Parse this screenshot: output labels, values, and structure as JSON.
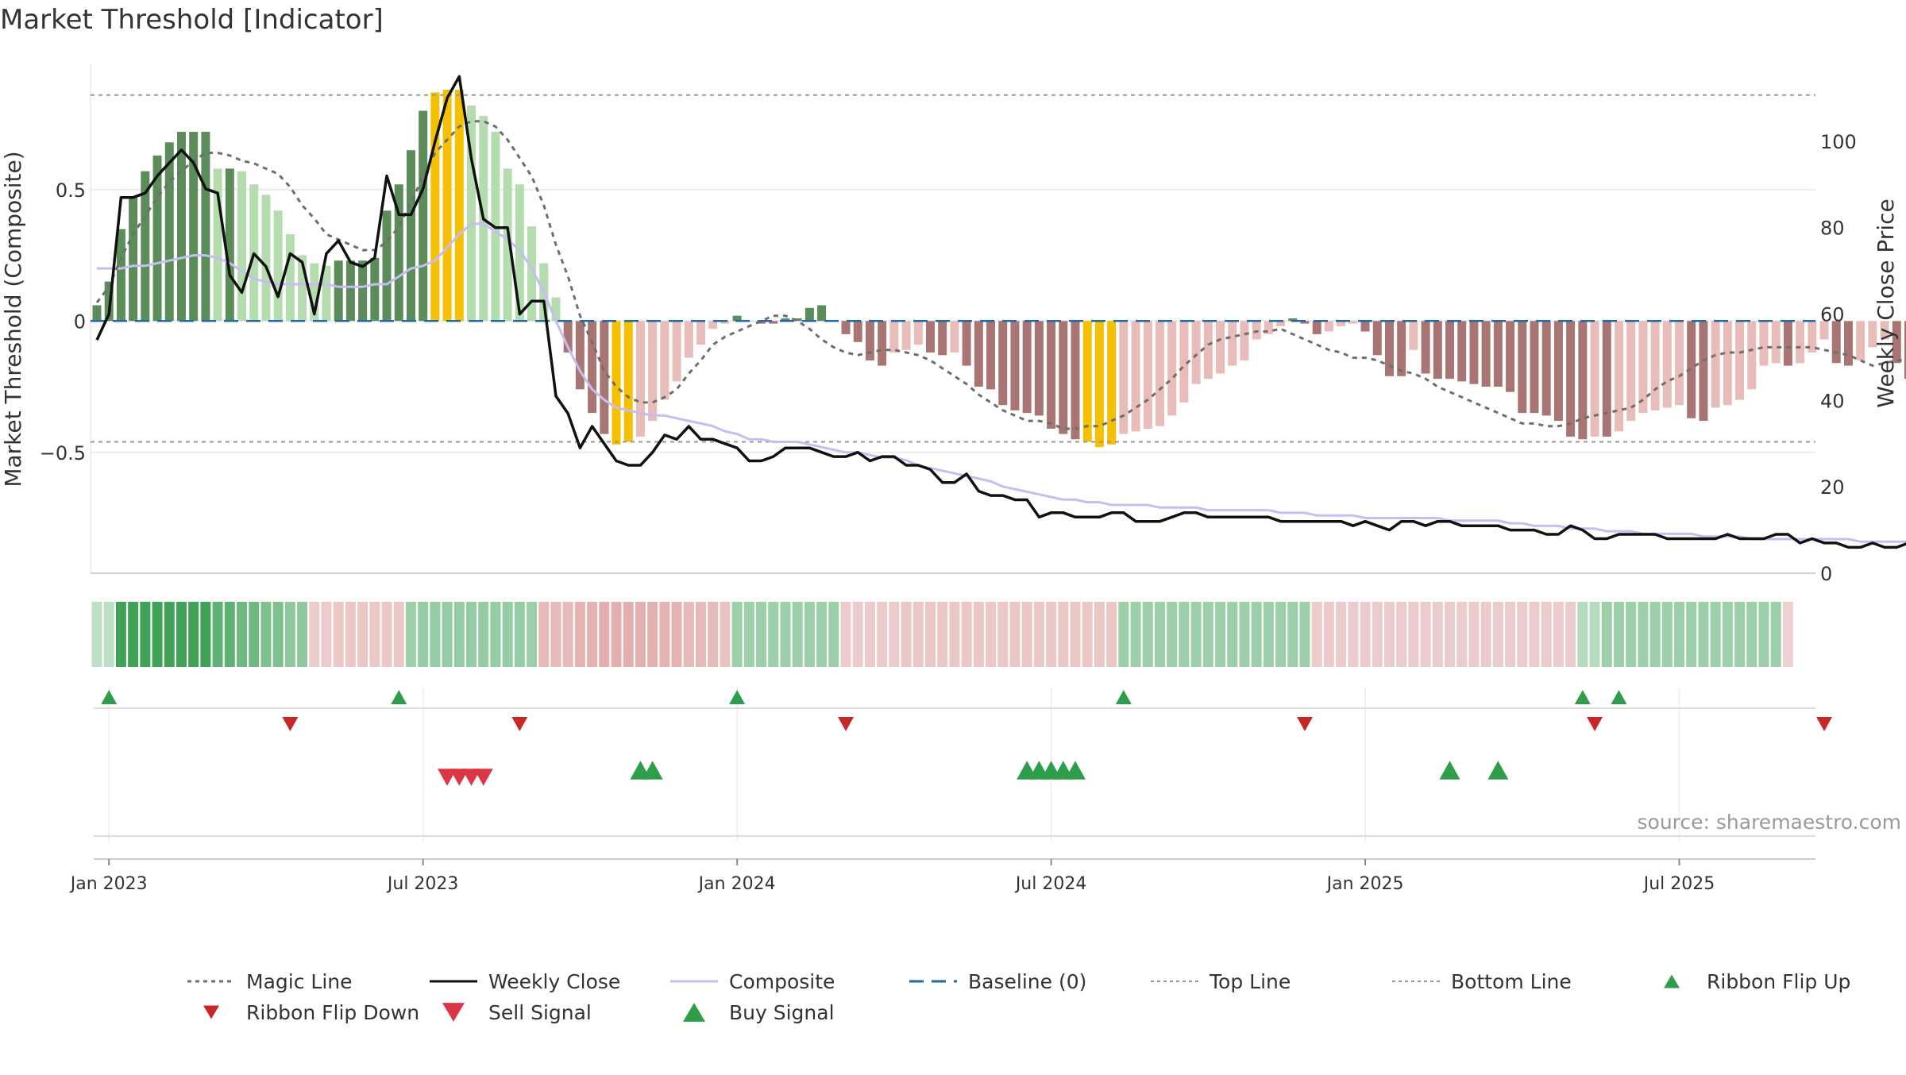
{
  "chart_data": {
    "type": "bar",
    "title": "Market Threshold [Indicator]",
    "source": "source: sharemaestro.com",
    "ylabel_left": "Market Threshold (Composite)",
    "ylabel_right": "Weekly Close Price",
    "ylim_left": [
      -0.96,
      0.98
    ],
    "ylim_right": [
      0,
      118
    ],
    "yticks_left": [
      {
        "v": 0.5,
        "label": "0.5"
      },
      {
        "v": 0,
        "label": "0"
      },
      {
        "v": -0.5,
        "label": "−0.5"
      }
    ],
    "yticks_right": [
      0,
      20,
      40,
      60,
      80,
      100
    ],
    "top_line": 0.86,
    "bottom_line": -0.46,
    "grid": true,
    "x_start_date": "2022-12-26",
    "x_ticks": [
      {
        "week": 1,
        "label": "Jan 2023"
      },
      {
        "week": 27,
        "label": "Jul 2023"
      },
      {
        "week": 53,
        "label": "Jan 2024"
      },
      {
        "week": 79,
        "label": "Jul 2024"
      },
      {
        "week": 105,
        "label": "Jan 2025"
      },
      {
        "week": 131,
        "label": "Jul 2025"
      }
    ],
    "composite_bars": [
      0.06,
      0.15,
      0.35,
      0.47,
      0.57,
      0.63,
      0.68,
      0.72,
      0.72,
      0.72,
      0.58,
      0.58,
      0.57,
      0.52,
      0.48,
      0.42,
      0.33,
      0.25,
      0.22,
      0.21,
      0.23,
      0.23,
      0.23,
      0.24,
      0.42,
      0.52,
      0.65,
      0.8,
      0.87,
      0.88,
      0.88,
      0.82,
      0.78,
      0.72,
      0.58,
      0.52,
      0.36,
      0.22,
      0.09,
      -0.12,
      -0.26,
      -0.35,
      -0.43,
      -0.47,
      -0.46,
      -0.44,
      -0.38,
      -0.3,
      -0.23,
      -0.14,
      -0.09,
      -0.03,
      -0.01,
      0.02,
      0.0,
      -0.01,
      -0.01,
      0.01,
      0.01,
      0.05,
      0.06,
      0.0,
      -0.05,
      -0.08,
      -0.15,
      -0.17,
      -0.12,
      -0.11,
      -0.09,
      -0.12,
      -0.13,
      -0.12,
      -0.17,
      -0.25,
      -0.26,
      -0.32,
      -0.34,
      -0.35,
      -0.36,
      -0.41,
      -0.43,
      -0.45,
      -0.46,
      -0.48,
      -0.47,
      -0.43,
      -0.42,
      -0.41,
      -0.4,
      -0.36,
      -0.31,
      -0.24,
      -0.22,
      -0.2,
      -0.17,
      -0.15,
      -0.07,
      -0.05,
      -0.02,
      0.01,
      -0.01,
      -0.05,
      -0.04,
      -0.02,
      -0.01,
      -0.04,
      -0.13,
      -0.21,
      -0.21,
      -0.11,
      -0.2,
      -0.22,
      -0.22,
      -0.23,
      -0.24,
      -0.25,
      -0.25,
      -0.27,
      -0.35,
      -0.35,
      -0.36,
      -0.38,
      -0.44,
      -0.45,
      -0.44,
      -0.44,
      -0.42,
      -0.38,
      -0.35,
      -0.34,
      -0.33,
      -0.32,
      -0.37,
      -0.38,
      -0.33,
      -0.32,
      -0.3,
      -0.26,
      -0.17,
      -0.16,
      -0.17,
      -0.16,
      -0.12,
      -0.07,
      -0.16,
      -0.17,
      -0.15,
      -0.1,
      -0.07,
      -0.16,
      -0.22,
      -0.22
    ],
    "weekly_close": [
      54,
      60,
      87,
      87,
      88,
      92,
      95,
      98,
      95,
      89,
      88,
      69,
      65,
      74,
      71,
      64,
      74,
      72,
      60,
      74,
      77,
      72,
      71,
      73,
      92,
      83,
      83,
      89,
      100,
      110,
      115,
      96,
      82,
      80,
      80,
      60,
      63,
      63,
      41,
      37,
      29,
      34,
      30,
      26,
      25,
      25,
      28,
      32,
      31,
      34,
      31,
      31,
      30,
      29,
      26,
      26,
      27,
      29,
      29,
      29,
      28,
      27,
      27,
      28,
      26,
      27,
      27,
      25,
      25,
      24,
      21,
      21,
      23,
      19,
      18,
      18,
      17,
      17,
      13,
      14,
      14,
      13,
      13,
      13,
      14,
      14,
      12,
      12,
      12,
      13,
      14,
      14,
      13,
      13,
      13,
      13,
      13,
      13,
      12,
      12,
      12,
      12,
      12,
      12,
      11,
      12,
      11,
      10,
      12,
      12,
      11,
      12,
      12,
      11,
      11,
      11,
      11,
      10,
      10,
      10,
      9,
      9,
      11,
      10,
      8,
      8,
      9,
      9,
      9,
      9,
      8,
      8,
      8,
      8,
      8,
      9,
      8,
      8,
      8,
      9,
      9,
      7,
      8,
      7,
      7,
      6,
      6,
      7,
      6,
      6,
      7,
      6,
      5,
      6,
      6
    ],
    "composite_line": [
      0.2,
      0.2,
      0.2,
      0.21,
      0.21,
      0.22,
      0.23,
      0.24,
      0.25,
      0.25,
      0.24,
      0.22,
      0.19,
      0.16,
      0.15,
      0.14,
      0.14,
      0.14,
      0.14,
      0.14,
      0.13,
      0.13,
      0.13,
      0.14,
      0.14,
      0.17,
      0.2,
      0.21,
      0.23,
      0.28,
      0.33,
      0.37,
      0.37,
      0.34,
      0.31,
      0.27,
      0.2,
      0.11,
      0.0,
      -0.1,
      -0.19,
      -0.26,
      -0.3,
      -0.33,
      -0.34,
      -0.35,
      -0.36,
      -0.36,
      -0.37,
      -0.38,
      -0.39,
      -0.4,
      -0.42,
      -0.43,
      -0.45,
      -0.45,
      -0.46,
      -0.46,
      -0.46,
      -0.47,
      -0.48,
      -0.49,
      -0.5,
      -0.5,
      -0.51,
      -0.52,
      -0.52,
      -0.53,
      -0.55,
      -0.56,
      -0.57,
      -0.58,
      -0.59,
      -0.6,
      -0.61,
      -0.63,
      -0.64,
      -0.65,
      -0.66,
      -0.67,
      -0.68,
      -0.68,
      -0.69,
      -0.69,
      -0.7,
      -0.7,
      -0.7,
      -0.7,
      -0.71,
      -0.71,
      -0.71,
      -0.71,
      -0.72,
      -0.72,
      -0.72,
      -0.72,
      -0.72,
      -0.72,
      -0.73,
      -0.73,
      -0.73,
      -0.74,
      -0.74,
      -0.74,
      -0.74,
      -0.75,
      -0.75,
      -0.75,
      -0.75,
      -0.75,
      -0.75,
      -0.75,
      -0.76,
      -0.76,
      -0.76,
      -0.76,
      -0.76,
      -0.77,
      -0.77,
      -0.78,
      -0.78,
      -0.78,
      -0.79,
      -0.79,
      -0.79,
      -0.8,
      -0.8,
      -0.8,
      -0.81,
      -0.81,
      -0.81,
      -0.81,
      -0.81,
      -0.82,
      -0.82,
      -0.82,
      -0.82,
      -0.83,
      -0.83,
      -0.83,
      -0.83,
      -0.83,
      -0.83,
      -0.83,
      -0.83,
      -0.83,
      -0.84,
      -0.84,
      -0.84,
      -0.84,
      -0.84,
      -0.84,
      -0.85,
      -0.85,
      -0.85
    ],
    "magic_line": [
      0.07,
      0.13,
      0.24,
      0.33,
      0.4,
      0.47,
      0.53,
      0.57,
      0.61,
      0.64,
      0.64,
      0.63,
      0.61,
      0.6,
      0.58,
      0.56,
      0.51,
      0.44,
      0.39,
      0.33,
      0.31,
      0.29,
      0.27,
      0.27,
      0.3,
      0.36,
      0.45,
      0.55,
      0.64,
      0.69,
      0.74,
      0.76,
      0.76,
      0.74,
      0.69,
      0.62,
      0.55,
      0.44,
      0.29,
      0.17,
      0.02,
      -0.08,
      -0.19,
      -0.25,
      -0.29,
      -0.31,
      -0.31,
      -0.29,
      -0.26,
      -0.2,
      -0.15,
      -0.09,
      -0.06,
      -0.04,
      -0.02,
      0.0,
      0.02,
      0.02,
      0.0,
      -0.03,
      -0.07,
      -0.1,
      -0.12,
      -0.13,
      -0.12,
      -0.11,
      -0.11,
      -0.12,
      -0.13,
      -0.15,
      -0.18,
      -0.21,
      -0.24,
      -0.28,
      -0.31,
      -0.34,
      -0.36,
      -0.38,
      -0.38,
      -0.39,
      -0.41,
      -0.41,
      -0.4,
      -0.4,
      -0.38,
      -0.36,
      -0.33,
      -0.3,
      -0.26,
      -0.22,
      -0.17,
      -0.13,
      -0.09,
      -0.07,
      -0.06,
      -0.05,
      -0.04,
      -0.04,
      -0.03,
      -0.05,
      -0.07,
      -0.09,
      -0.11,
      -0.12,
      -0.14,
      -0.14,
      -0.15,
      -0.17,
      -0.19,
      -0.2,
      -0.22,
      -0.25,
      -0.27,
      -0.29,
      -0.31,
      -0.33,
      -0.35,
      -0.37,
      -0.39,
      -0.39,
      -0.4,
      -0.4,
      -0.39,
      -0.37,
      -0.36,
      -0.35,
      -0.34,
      -0.33,
      -0.3,
      -0.26,
      -0.23,
      -0.21,
      -0.18,
      -0.15,
      -0.13,
      -0.12,
      -0.12,
      -0.11,
      -0.1,
      -0.1,
      -0.1,
      -0.1,
      -0.1,
      -0.11,
      -0.12,
      -0.13,
      -0.15,
      -0.17,
      -0.16,
      -0.15,
      -0.15,
      -0.14,
      -0.13,
      -0.14,
      -0.15,
      -0.16
    ],
    "ribbon_values": [
      0.2,
      0.2,
      1,
      1,
      1,
      1,
      1,
      1,
      1,
      1,
      0.8,
      0.8,
      0.7,
      0.7,
      0.6,
      0.6,
      0.5,
      0.5,
      -0.3,
      -0.3,
      -0.35,
      -0.35,
      -0.35,
      -0.35,
      -0.35,
      -0.35,
      0.4,
      0.45,
      0.45,
      0.45,
      0.45,
      0.45,
      0.45,
      0.45,
      0.45,
      0.45,
      0.4,
      -0.5,
      -0.5,
      -0.5,
      -0.55,
      -0.55,
      -0.6,
      -0.6,
      -0.6,
      -0.6,
      -0.6,
      -0.55,
      -0.55,
      -0.5,
      -0.5,
      -0.5,
      -0.4,
      0.4,
      0.4,
      0.4,
      0.4,
      0.4,
      0.4,
      0.4,
      0.4,
      0.4,
      -0.3,
      -0.3,
      -0.3,
      -0.3,
      -0.3,
      -0.35,
      -0.35,
      -0.35,
      -0.35,
      -0.35,
      -0.35,
      -0.35,
      -0.35,
      -0.35,
      -0.35,
      -0.35,
      -0.35,
      -0.35,
      -0.35,
      -0.35,
      -0.35,
      -0.35,
      -0.35,
      0.4,
      0.4,
      0.4,
      0.4,
      0.4,
      0.4,
      0.4,
      0.4,
      0.4,
      0.4,
      0.4,
      0.4,
      0.4,
      0.4,
      0.4,
      0.4,
      -0.3,
      -0.3,
      -0.3,
      -0.3,
      -0.3,
      -0.3,
      -0.3,
      -0.3,
      -0.3,
      -0.3,
      -0.3,
      -0.3,
      -0.3,
      -0.3,
      -0.3,
      -0.3,
      -0.3,
      -0.3,
      -0.3,
      -0.3,
      -0.3,
      -0.3,
      0.25,
      0.25,
      0.4,
      0.4,
      0.4,
      0.4,
      0.4,
      0.4,
      0.4,
      0.4,
      0.4,
      0.4,
      0.4,
      0.4,
      0.4,
      0.4,
      0.4,
      -0.25
    ],
    "ribbon_flip_up_weeks": [
      1,
      25,
      53,
      85,
      123,
      126
    ],
    "ribbon_flip_down_weeks": [
      16,
      35,
      62,
      100,
      124,
      143
    ],
    "sell_signal_weeks": [
      29,
      30,
      31,
      32
    ],
    "buy_signal_weeks": [
      45,
      46,
      77,
      78,
      79,
      80,
      81,
      112,
      116
    ],
    "colors": {
      "positive_strong": "#5b8c5a",
      "positive_weak": "#b5dcaf",
      "negative_strong": "#a97572",
      "negative_weak": "#e8bcb8",
      "extreme": "#f5c000",
      "weekly_close": "#111111",
      "composite": "#c6bdf0",
      "magic": "#6e6e6e",
      "baseline": "#1f6aa5",
      "guide": "#999999",
      "buy": "#2e9e4a",
      "sell": "#dc3545",
      "ribbon_pos": "#3fa257",
      "ribbon_neg": "#d48986"
    },
    "legend": [
      {
        "label": "Magic Line",
        "kind": "dotted",
        "color": "#6e6e6e"
      },
      {
        "label": "Weekly Close",
        "kind": "solid",
        "color": "#111111"
      },
      {
        "label": "Composite",
        "kind": "solid",
        "color": "#c6bdf0"
      },
      {
        "label": "Baseline (0)",
        "kind": "dashed",
        "color": "#1f6aa5"
      },
      {
        "label": "Top Line",
        "kind": "dotted-light",
        "color": "#999999"
      },
      {
        "label": "Bottom Line",
        "kind": "dotted-light",
        "color": "#999999"
      },
      {
        "label": "Ribbon Flip Up",
        "kind": "tri-up-small",
        "color": "#2e9e4a"
      },
      {
        "label": "Ribbon Flip Down",
        "kind": "tri-down-small",
        "color": "#c62828"
      },
      {
        "label": "Sell Signal",
        "kind": "tri-down",
        "color": "#dc3545"
      },
      {
        "label": "Buy Signal",
        "kind": "tri-up",
        "color": "#2e9e4a"
      }
    ]
  }
}
